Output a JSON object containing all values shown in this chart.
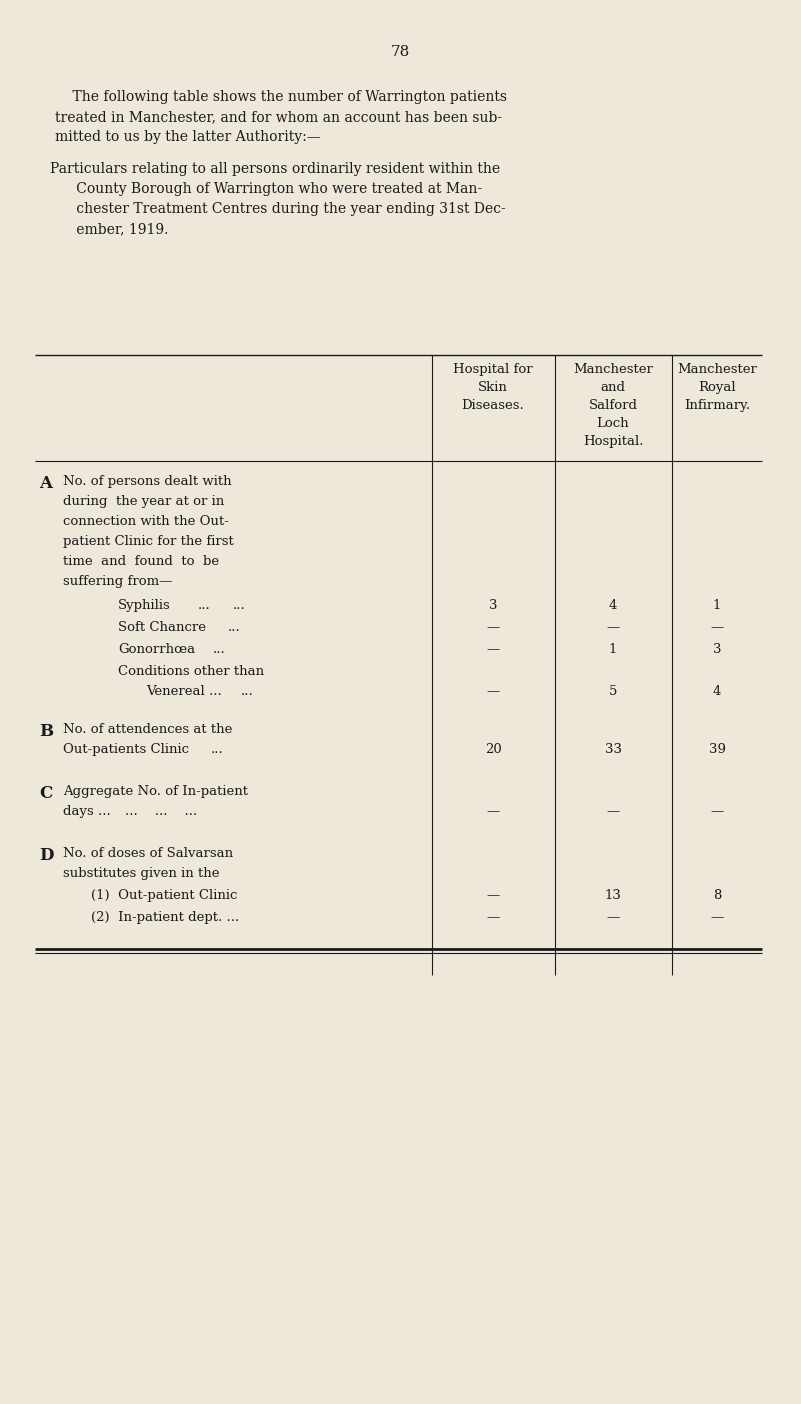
{
  "page_number": "78",
  "bg_color": "#ede8da",
  "text_color": "#1a1a1a",
  "intro_text_1_lines": [
    "    The following table shows the number of Warrington patients",
    "treated in Manchester, and for whom an account has been sub-",
    "mitted to us by the latter Authority:—"
  ],
  "intro_text_2_lines": [
    "Particulars relating to all persons ordinarily resident within the",
    "      County Borough of Warrington who were treated at Man-",
    "      chester Treatment Centres during the year ending 31st Dec-",
    "      ember, 1919."
  ],
  "col_header_1": [
    "Hospital for",
    "Skin",
    "Diseases."
  ],
  "col_header_2": [
    "Manchester",
    "and",
    "Salford",
    "Loch",
    "Hospital."
  ],
  "col_header_3": [
    "Manchester",
    "Royal",
    "Infirmary."
  ],
  "section_A_label": "A",
  "section_A_lines": [
    "No. of persons dealt with",
    "during  the year at or in",
    "connection with the Out-",
    "patient Clinic for the first",
    "time  and  found  to  be",
    "suffering from—"
  ],
  "row_syphilis_label": "Syphilis",
  "row_syphilis_dots1": "...",
  "row_syphilis_dots2": "...",
  "row_syphilis_vals": [
    "3",
    "4",
    "1"
  ],
  "row_soft_label": "Soft Chancre",
  "row_soft_dots": "...",
  "row_soft_vals": [
    "—",
    "—",
    "—"
  ],
  "row_gon_label": "Gonorrhœa",
  "row_gon_dots": "...",
  "row_gon_vals": [
    "—",
    "1",
    "3"
  ],
  "row_cond_label1": "Conditions other than",
  "row_cond_label2": "Venereal ...",
  "row_cond_dots": "...",
  "row_cond_vals": [
    "—",
    "5",
    "4"
  ],
  "section_B_label": "B",
  "section_B_lines": [
    "No. of attendences at the",
    "Out-patients Clinic"
  ],
  "row_B_dots": "...",
  "row_B_vals": [
    "20",
    "33",
    "39"
  ],
  "section_C_label": "C",
  "section_C_lines": [
    "Aggregate No. of In-patient",
    "days ..."
  ],
  "row_C_dots": "...    ...    ...",
  "row_C_vals": [
    "—",
    "—",
    "—"
  ],
  "section_D_label": "D",
  "section_D_lines": [
    "No. of doses of Salvarsan",
    "substitutes given in the"
  ],
  "row_D1_label": "(1)  Out-patient Clinic",
  "row_D1_vals": [
    "—",
    "13",
    "8"
  ],
  "row_D2_label": "(2)  In-patient dept. ...",
  "row_D2_vals": [
    "—",
    "—",
    "—"
  ],
  "table_bottom_double": true
}
